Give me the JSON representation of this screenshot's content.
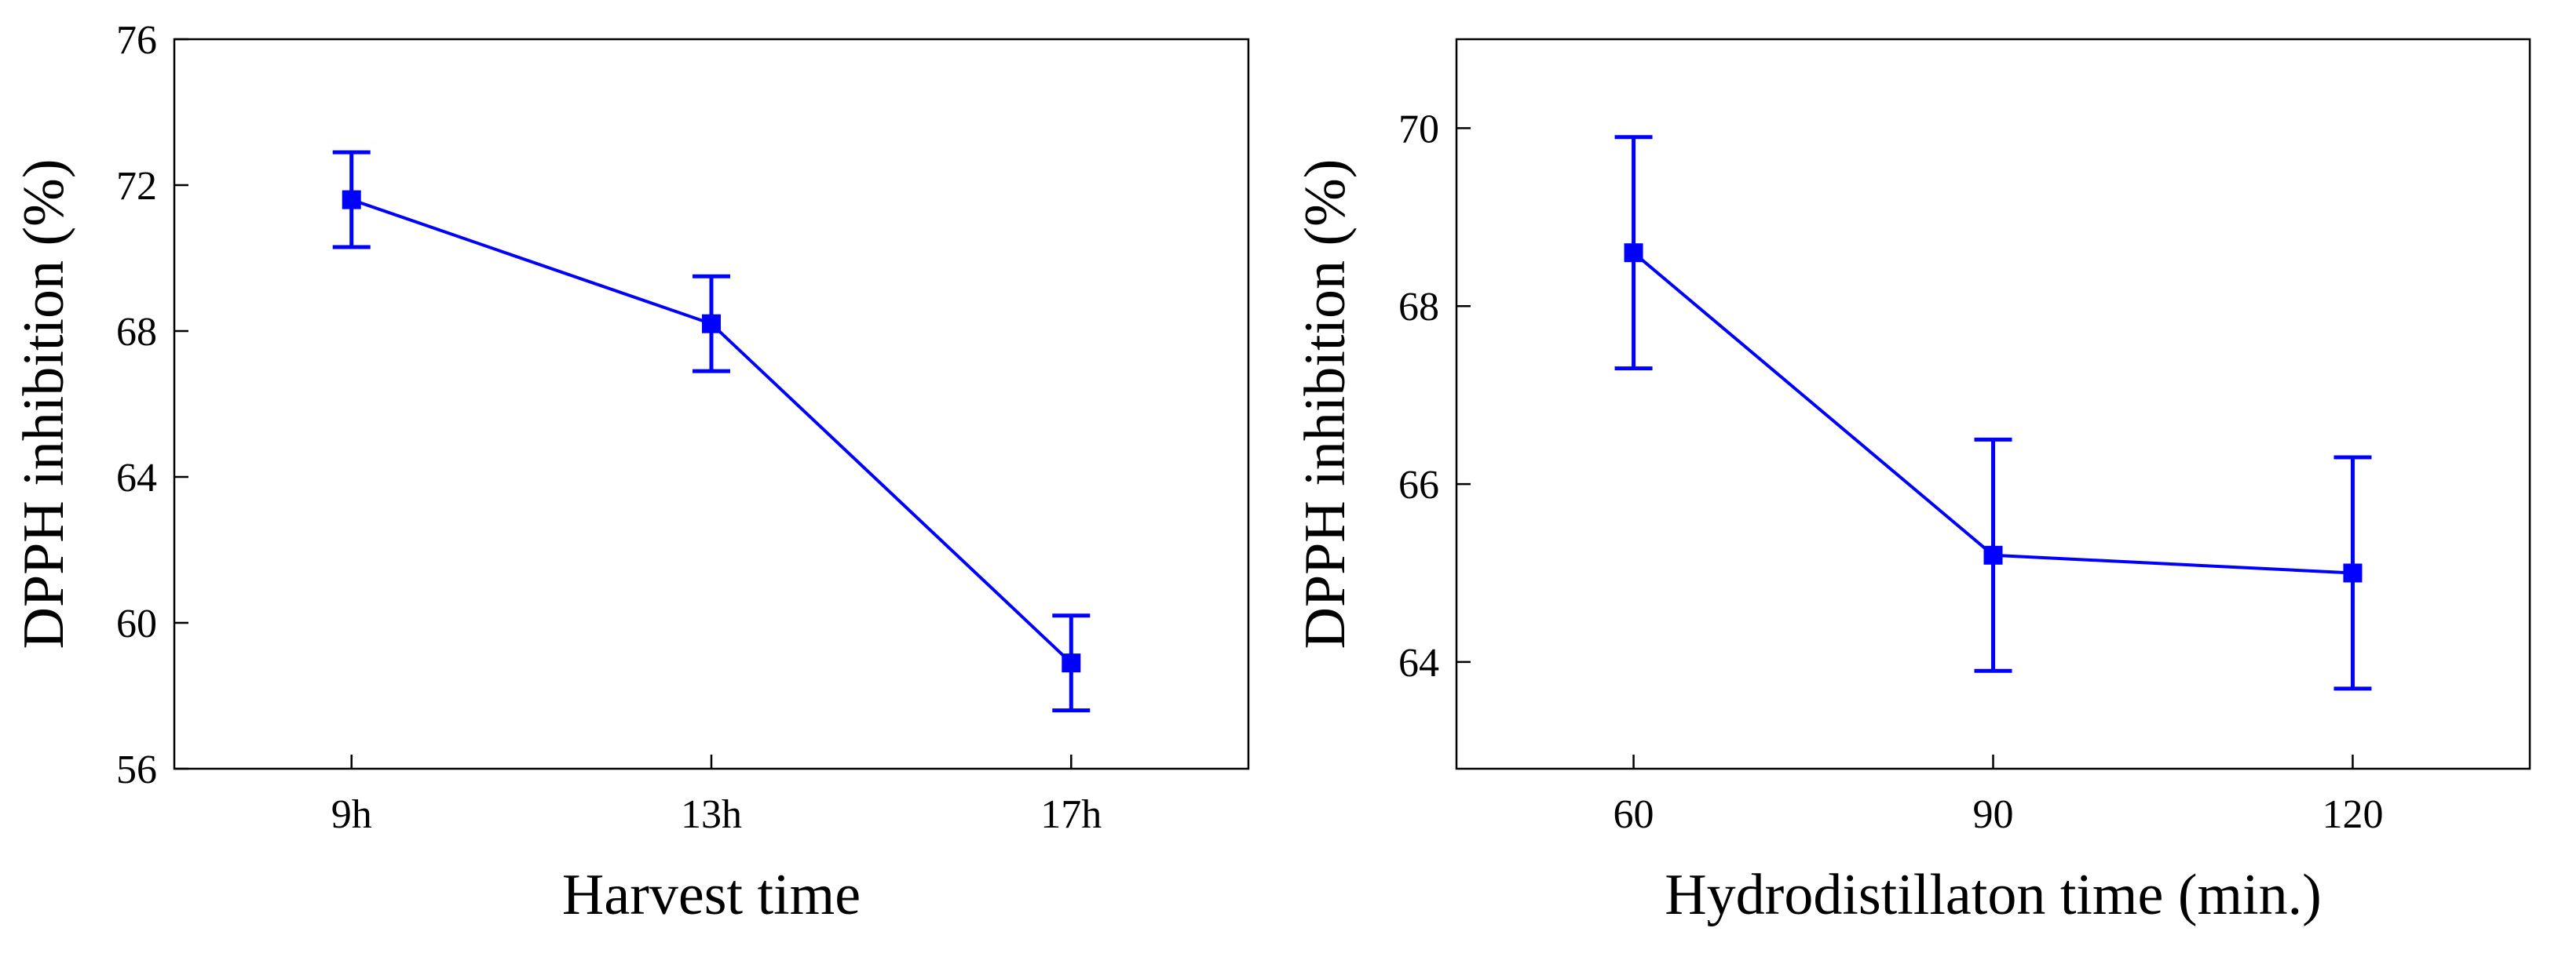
{
  "chart_data": [
    {
      "type": "line",
      "title": "",
      "xlabel": "Harvest time",
      "ylabel": "DPPH inhibition (%)",
      "categories": [
        "9h",
        "13h",
        "17h"
      ],
      "series": [
        {
          "name": "DPPH inhibition",
          "values": [
            71.6,
            68.2,
            58.9
          ],
          "error_low": [
            70.3,
            66.9,
            57.6
          ],
          "error_high": [
            72.9,
            69.5,
            60.2
          ]
        }
      ],
      "ylim": [
        56,
        76
      ],
      "yticks": [
        56,
        60,
        64,
        68,
        72,
        76
      ],
      "grid": false,
      "color": "#0000ff"
    },
    {
      "type": "line",
      "title": "",
      "xlabel": "Hydrodistillaton time (min.)",
      "ylabel": "DPPH inhibition (%)",
      "categories": [
        "60",
        "90",
        "120"
      ],
      "series": [
        {
          "name": "DPPH inhibition",
          "values": [
            68.6,
            65.2,
            65.0
          ],
          "error_low": [
            67.3,
            63.9,
            63.7
          ],
          "error_high": [
            69.9,
            66.5,
            66.3
          ]
        }
      ],
      "ylim": [
        62.8,
        71.0
      ],
      "yticks": [
        64,
        66,
        68,
        70
      ],
      "grid": false,
      "color": "#0000ff"
    }
  ]
}
